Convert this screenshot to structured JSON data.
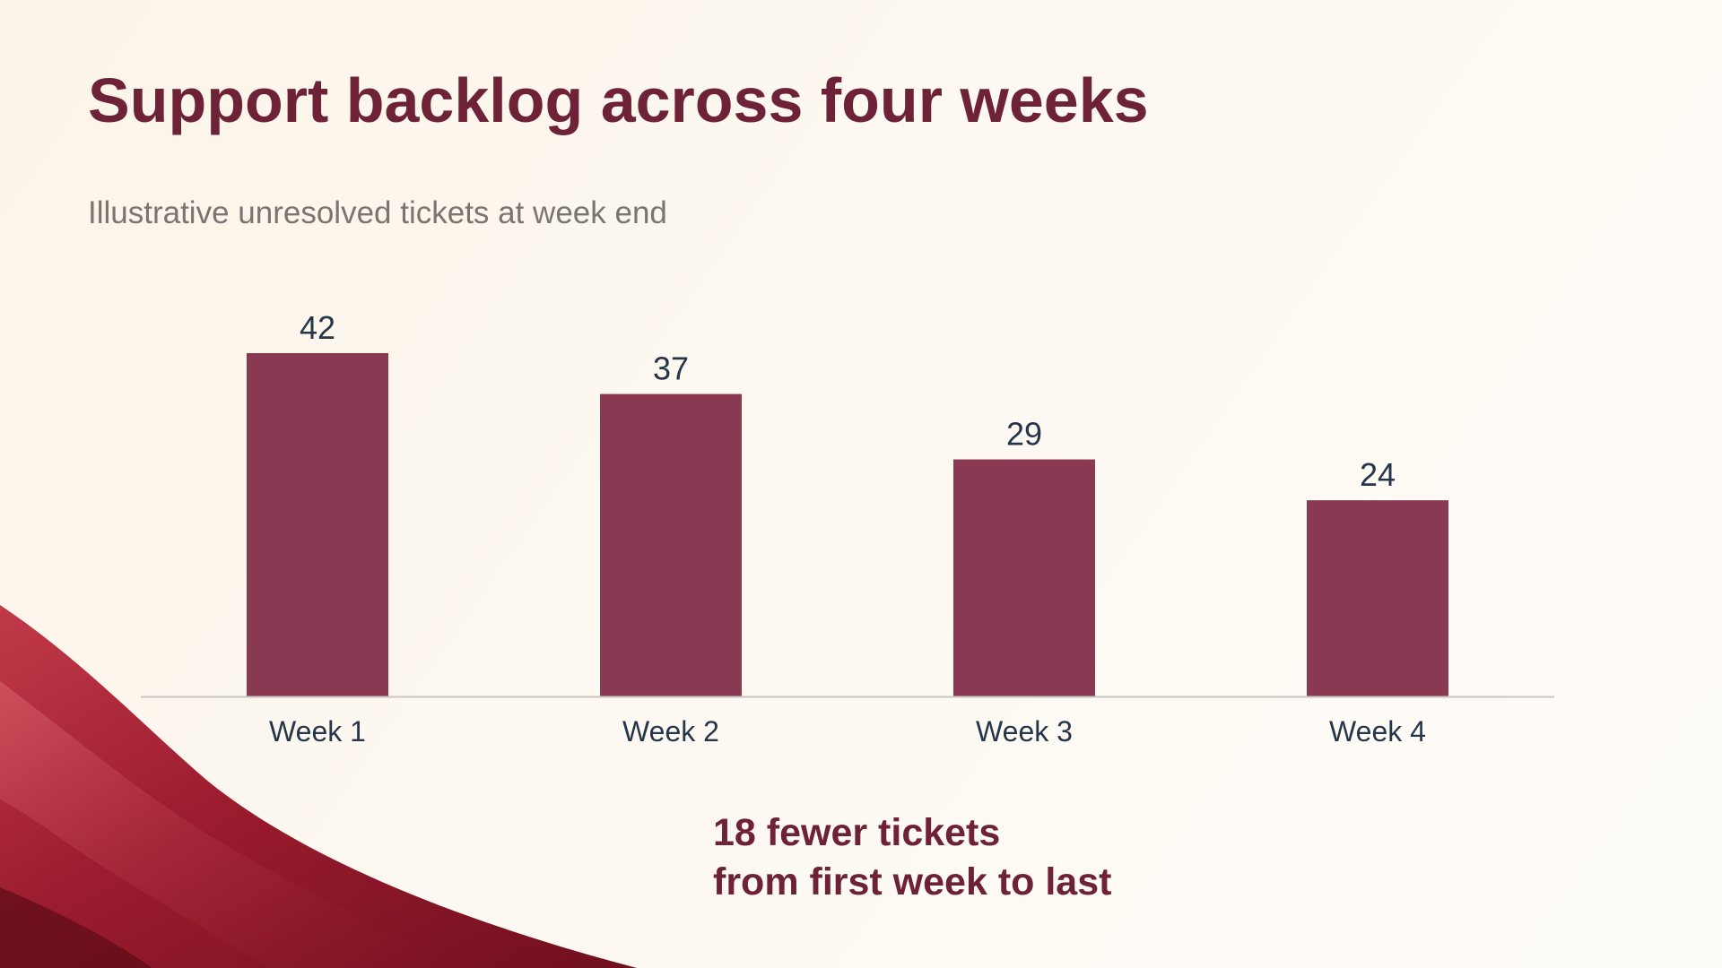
{
  "slide": {
    "title": "Support backlog across four weeks",
    "subtitle": "Illustrative unresolved tickets at week end",
    "callout": {
      "line1": "18 fewer tickets",
      "line2": "from first week to last"
    }
  },
  "colors": {
    "bar": "#8a3953",
    "title": "#6e2238",
    "label": "#26364a",
    "axis": "#c9c5c2",
    "silk_dark": "#6f0f1e",
    "silk_mid": "#9b1c2e",
    "silk_light": "#c23a49"
  },
  "chart_data": {
    "type": "bar",
    "categories": [
      "Week 1",
      "Week 2",
      "Week 3",
      "Week 4"
    ],
    "values": [
      42,
      37,
      29,
      24
    ],
    "data_labels": [
      "42",
      "37",
      "29",
      "24"
    ],
    "ylim": [
      0,
      42
    ],
    "grid": false,
    "legend": "none"
  }
}
